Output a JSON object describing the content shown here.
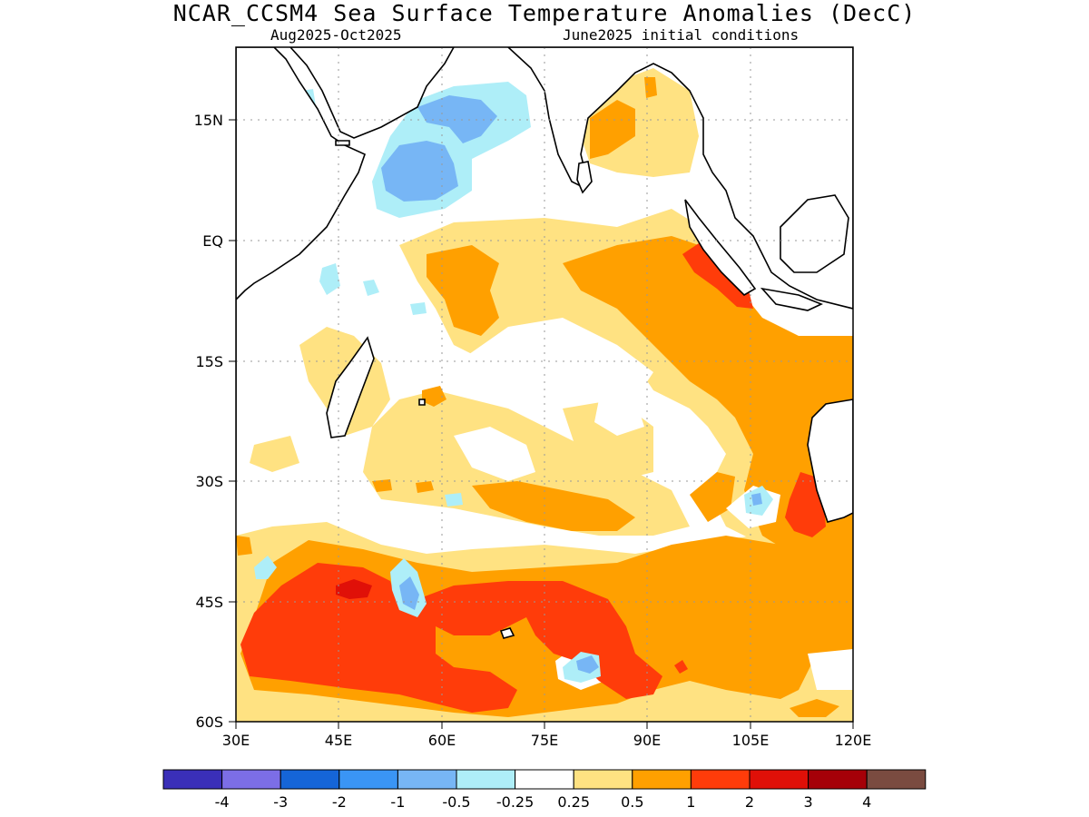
{
  "title": "NCAR_CCSM4 Sea Surface Temperature Anomalies (DecC)",
  "subtitle_left": "Aug2025-Oct2025",
  "subtitle_right": "June2025 initial conditions",
  "lat_ticks": [
    "15N",
    "EQ",
    "15S",
    "30S",
    "45S",
    "60S"
  ],
  "lon_ticks": [
    "30E",
    "45E",
    "60E",
    "75E",
    "90E",
    "105E",
    "120E"
  ],
  "colorbar": {
    "colors": [
      "#3a2fb8",
      "#7c6ee6",
      "#1565d8",
      "#3a95f5",
      "#77b6f5",
      "#aeeef8",
      "#ffffff",
      "#ffe282",
      "#ffa000",
      "#ff3c0a",
      "#e01008",
      "#a50008",
      "#7a4b40"
    ],
    "labels": [
      "-4",
      "-3",
      "-2",
      "-1",
      "-0.5",
      "-0.25",
      "0.25",
      "0.5",
      "1",
      "2",
      "3",
      "4"
    ]
  }
}
